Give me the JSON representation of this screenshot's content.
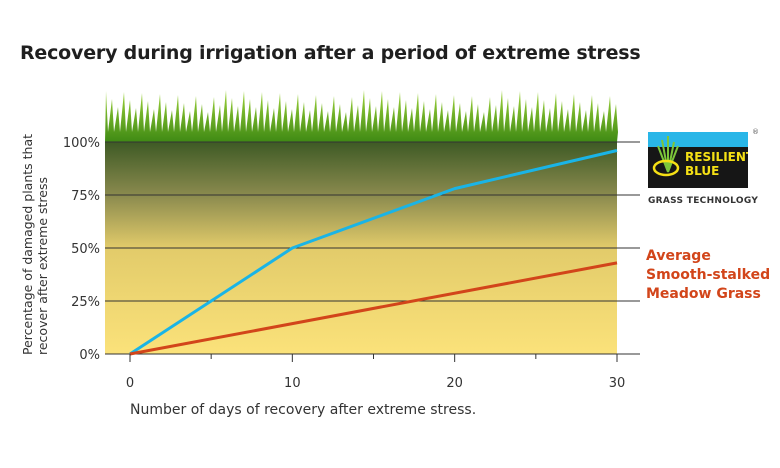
{
  "chart_data": {
    "type": "line",
    "title": "Recovery during irrigation after a period of extreme stress",
    "xlabel": "Number of days of recovery after extreme stress.",
    "ylabel": "Percentage of damaged plants that recover after extreme stress",
    "xlim": [
      0,
      30
    ],
    "ylim": [
      0,
      100
    ],
    "x_ticks": [
      "0",
      "10",
      "20",
      "30"
    ],
    "y_ticks": [
      "0%",
      "25%",
      "50%",
      "75%",
      "100%"
    ],
    "grid": "horizontal",
    "series": [
      {
        "name": "",
        "color": "#1ab4e6",
        "x": [
          0,
          10,
          20,
          30
        ],
        "y": [
          0,
          50,
          78,
          96
        ]
      },
      {
        "name": "Average Smooth-stalked Meadow Grass",
        "color": "#d2451a",
        "x": [
          0,
          30
        ],
        "y": [
          0,
          43
        ]
      }
    ],
    "legend_lines": [
      "Average",
      "Smooth-stalked",
      "Meadow Grass"
    ],
    "legend_placement": "right"
  },
  "logo": {
    "line1": "RESILIENT",
    "line2": "BLUE",
    "tagline": "GRASS TECHNOLOGY",
    "mark": "®"
  },
  "ylabel_lines": [
    "Percentage of damaged plants that",
    "recover after extreme stress"
  ]
}
